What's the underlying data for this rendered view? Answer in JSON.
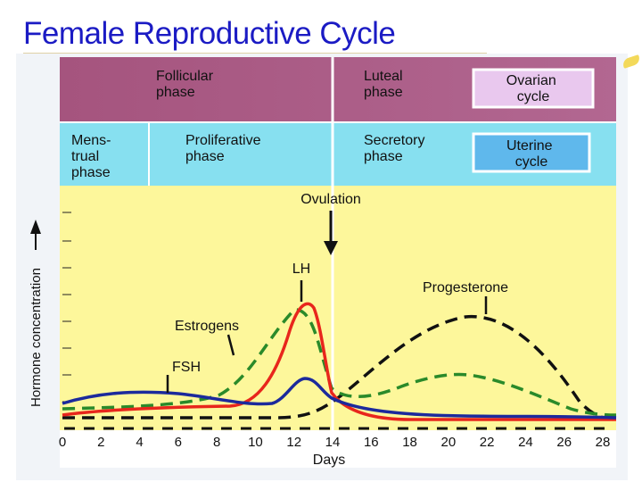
{
  "title": "Female Reproductive Cycle",
  "bands": {
    "ovarian": {
      "follicular": [
        "Follicular",
        "phase"
      ],
      "luteal": [
        "Luteal",
        "phase"
      ],
      "legend": [
        "Ovarian",
        "cycle"
      ]
    },
    "uterine": {
      "menstrual": [
        "Mens-",
        "trual",
        "phase"
      ],
      "proliferative": [
        "Proliferative",
        "phase"
      ],
      "secretory": [
        "Secretory",
        "phase"
      ],
      "legend": [
        "Uterine",
        "cycle"
      ]
    }
  },
  "ovulation_label": "Ovulation",
  "hormone_labels": {
    "lh": "LH",
    "estrogens": "Estrogens",
    "fsh": "FSH",
    "progesterone": "Progesterone"
  },
  "y_axis_label": "Hormone concentration",
  "x_axis_label": "Days",
  "x_ticks": [
    "0",
    "2",
    "4",
    "6",
    "8",
    "10",
    "12",
    "14",
    "16",
    "18",
    "20",
    "22",
    "24",
    "26",
    "28"
  ],
  "colors": {
    "title": "#1b1bc4",
    "ovarian_band": "#a5547e",
    "uterine_band": "#87e0f0",
    "plot_bg": "#fdf79b",
    "lh": "#e8261c",
    "fsh": "#1c2a9c",
    "estrogens": "#2a8a2a",
    "progesterone": "#111111"
  }
}
